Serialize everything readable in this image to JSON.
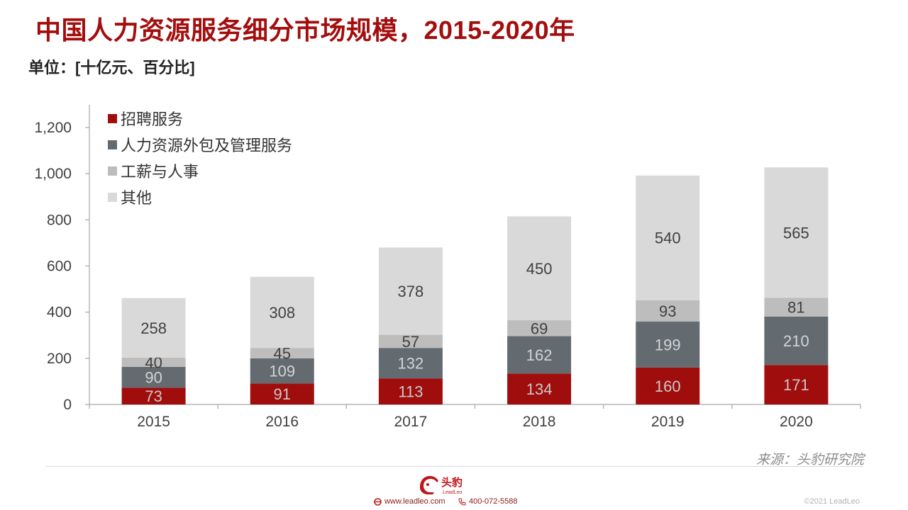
{
  "header": {
    "title": "中国人力资源服务细分市场规模，2015-2020年",
    "unit": "单位：[十亿元、百分比]"
  },
  "footer": {
    "source": "来源：头豹研究院",
    "logo_text": "头豹",
    "logo_subtext": "LeadLeo",
    "website": "www.leadleo.com",
    "phone": "400-072-5588",
    "copyright": "©2021 LeadLeo"
  },
  "colors": {
    "title": "#a30d0d",
    "recruitment": "#a00d0d",
    "outsourcing": "#636b71",
    "payroll": "#bdbdbd",
    "other": "#d9d9d9"
  },
  "chart_data": {
    "type": "bar",
    "stacked": true,
    "title": "中国人力资源服务细分市场规模，2015-2020年",
    "ylabel": "单位：[十亿元、百分比]",
    "xlabel": "",
    "categories": [
      "2015",
      "2016",
      "2017",
      "2018",
      "2019",
      "2020"
    ],
    "ylim": [
      0,
      1300
    ],
    "yticks": [
      0,
      200,
      400,
      600,
      800,
      1000,
      1200
    ],
    "ytick_labels": [
      "0",
      "200",
      "400",
      "600",
      "800",
      "1,000",
      "1,200"
    ],
    "legend_position": "top-left",
    "series": [
      {
        "name": "招聘服务",
        "color": "#a00d0d",
        "label_color": "#c9c9c9",
        "values": [
          73,
          91,
          113,
          134,
          160,
          171
        ]
      },
      {
        "name": "人力资源外包及管理服务",
        "color": "#636b71",
        "label_color": "#d3d3d3",
        "values": [
          90,
          109,
          132,
          162,
          199,
          210
        ]
      },
      {
        "name": "工薪与人事",
        "color": "#bdbdbd",
        "label_color": "#404040",
        "values": [
          40,
          45,
          57,
          69,
          93,
          81
        ]
      },
      {
        "name": "其他",
        "color": "#d9d9d9",
        "label_color": "#404040",
        "values": [
          258,
          308,
          378,
          450,
          540,
          565
        ]
      }
    ]
  }
}
